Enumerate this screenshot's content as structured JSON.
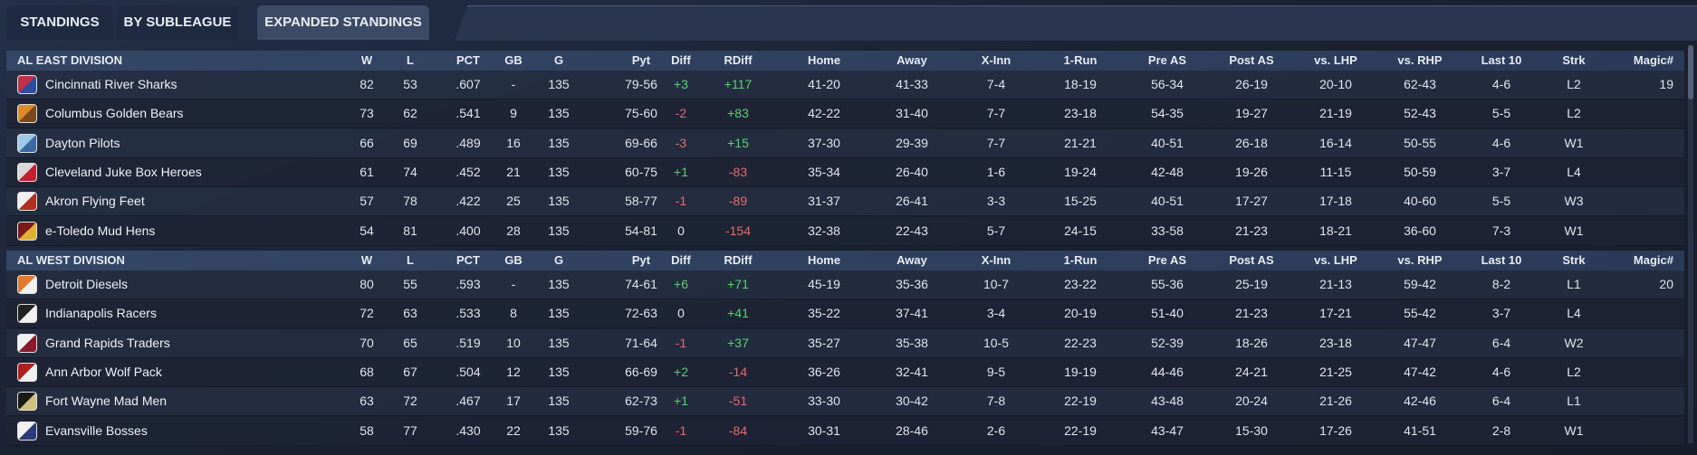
{
  "tabs": [
    "STANDINGS",
    "BY SUBLEAGUE",
    "EXPANDED STANDINGS"
  ],
  "columns": [
    "W",
    "L",
    "PCT",
    "GB",
    "G",
    "Pyt",
    "Diff",
    "RDiff",
    "Home",
    "Away",
    "X-Inn",
    "1-Run",
    "Pre AS",
    "Post AS",
    "vs. LHP",
    "vs. RHP",
    "Last 10",
    "Strk",
    "Magic#"
  ],
  "divisions": [
    {
      "name": "AL EAST DIVISION",
      "rows": [
        {
          "team": "Cincinnati River Sharks",
          "cells": [
            "82",
            "53",
            ".607",
            "-",
            "135",
            "79-56",
            "+3",
            "+117",
            "41-20",
            "41-33",
            "7-4",
            "18-19",
            "56-34",
            "26-19",
            "20-10",
            "62-43",
            "4-6",
            "L2",
            "19"
          ]
        },
        {
          "team": "Columbus Golden Bears",
          "cells": [
            "73",
            "62",
            ".541",
            "9",
            "135",
            "75-60",
            "-2",
            "+83",
            "42-22",
            "31-40",
            "7-7",
            "23-18",
            "54-35",
            "19-27",
            "21-19",
            "52-43",
            "5-5",
            "L2",
            null
          ]
        },
        {
          "team": "Dayton Pilots",
          "cells": [
            "66",
            "69",
            ".489",
            "16",
            "135",
            "69-66",
            "-3",
            "+15",
            "37-30",
            "29-39",
            "7-7",
            "21-21",
            "40-51",
            "26-18",
            "16-14",
            "50-55",
            "4-6",
            "W1",
            null
          ]
        },
        {
          "team": "Cleveland Juke Box Heroes",
          "cells": [
            "61",
            "74",
            ".452",
            "21",
            "135",
            "60-75",
            "+1",
            "-83",
            "35-34",
            "26-40",
            "1-6",
            "19-24",
            "42-48",
            "19-26",
            "11-15",
            "50-59",
            "3-7",
            "L4",
            null
          ]
        },
        {
          "team": "Akron  Flying Feet",
          "cells": [
            "57",
            "78",
            ".422",
            "25",
            "135",
            "58-77",
            "-1",
            "-89",
            "31-37",
            "26-41",
            "3-3",
            "15-25",
            "40-51",
            "17-27",
            "17-18",
            "40-60",
            "5-5",
            "W3",
            null
          ]
        },
        {
          "team": "e-Toledo  Mud Hens",
          "cells": [
            "54",
            "81",
            ".400",
            "28",
            "135",
            "54-81",
            "0",
            "-154",
            "32-38",
            "22-43",
            "5-7",
            "24-15",
            "33-58",
            "21-23",
            "18-21",
            "36-60",
            "7-3",
            "W1",
            null
          ]
        }
      ]
    },
    {
      "name": "AL WEST DIVISION",
      "rows": [
        {
          "team": "Detroit Diesels",
          "cells": [
            "80",
            "55",
            ".593",
            "-",
            "135",
            "74-61",
            "+6",
            "+71",
            "45-19",
            "35-36",
            "10-7",
            "23-22",
            "55-36",
            "25-19",
            "21-13",
            "59-42",
            "8-2",
            "L1",
            "20"
          ]
        },
        {
          "team": "Indianapolis Racers",
          "cells": [
            "72",
            "63",
            ".533",
            "8",
            "135",
            "72-63",
            "0",
            "+41",
            "35-22",
            "37-41",
            "3-4",
            "20-19",
            "51-40",
            "21-23",
            "17-21",
            "55-42",
            "3-7",
            "L4",
            null
          ]
        },
        {
          "team": "Grand Rapids Traders",
          "cells": [
            "70",
            "65",
            ".519",
            "10",
            "135",
            "71-64",
            "-1",
            "+37",
            "35-27",
            "35-38",
            "10-5",
            "22-23",
            "52-39",
            "18-26",
            "23-18",
            "47-47",
            "6-4",
            "W2",
            null
          ]
        },
        {
          "team": "Ann Arbor Wolf Pack",
          "cells": [
            "68",
            "67",
            ".504",
            "12",
            "135",
            "66-69",
            "+2",
            "-14",
            "36-26",
            "32-41",
            "9-5",
            "19-19",
            "44-46",
            "24-21",
            "21-25",
            "47-42",
            "4-6",
            "L2",
            null
          ]
        },
        {
          "team": "Fort Wayne Mad Men",
          "cells": [
            "63",
            "72",
            ".467",
            "17",
            "135",
            "62-73",
            "+1",
            "-51",
            "33-30",
            "30-42",
            "7-8",
            "22-19",
            "43-48",
            "20-24",
            "21-26",
            "42-46",
            "6-4",
            "L1",
            null
          ]
        },
        {
          "team": "Evansville Bosses",
          "cells": [
            "58",
            "77",
            ".430",
            "22",
            "135",
            "59-76",
            "-1",
            "-84",
            "30-31",
            "28-46",
            "2-6",
            "22-19",
            "43-47",
            "15-30",
            "17-26",
            "41-51",
            "2-8",
            "W1",
            null
          ]
        }
      ]
    }
  ]
}
